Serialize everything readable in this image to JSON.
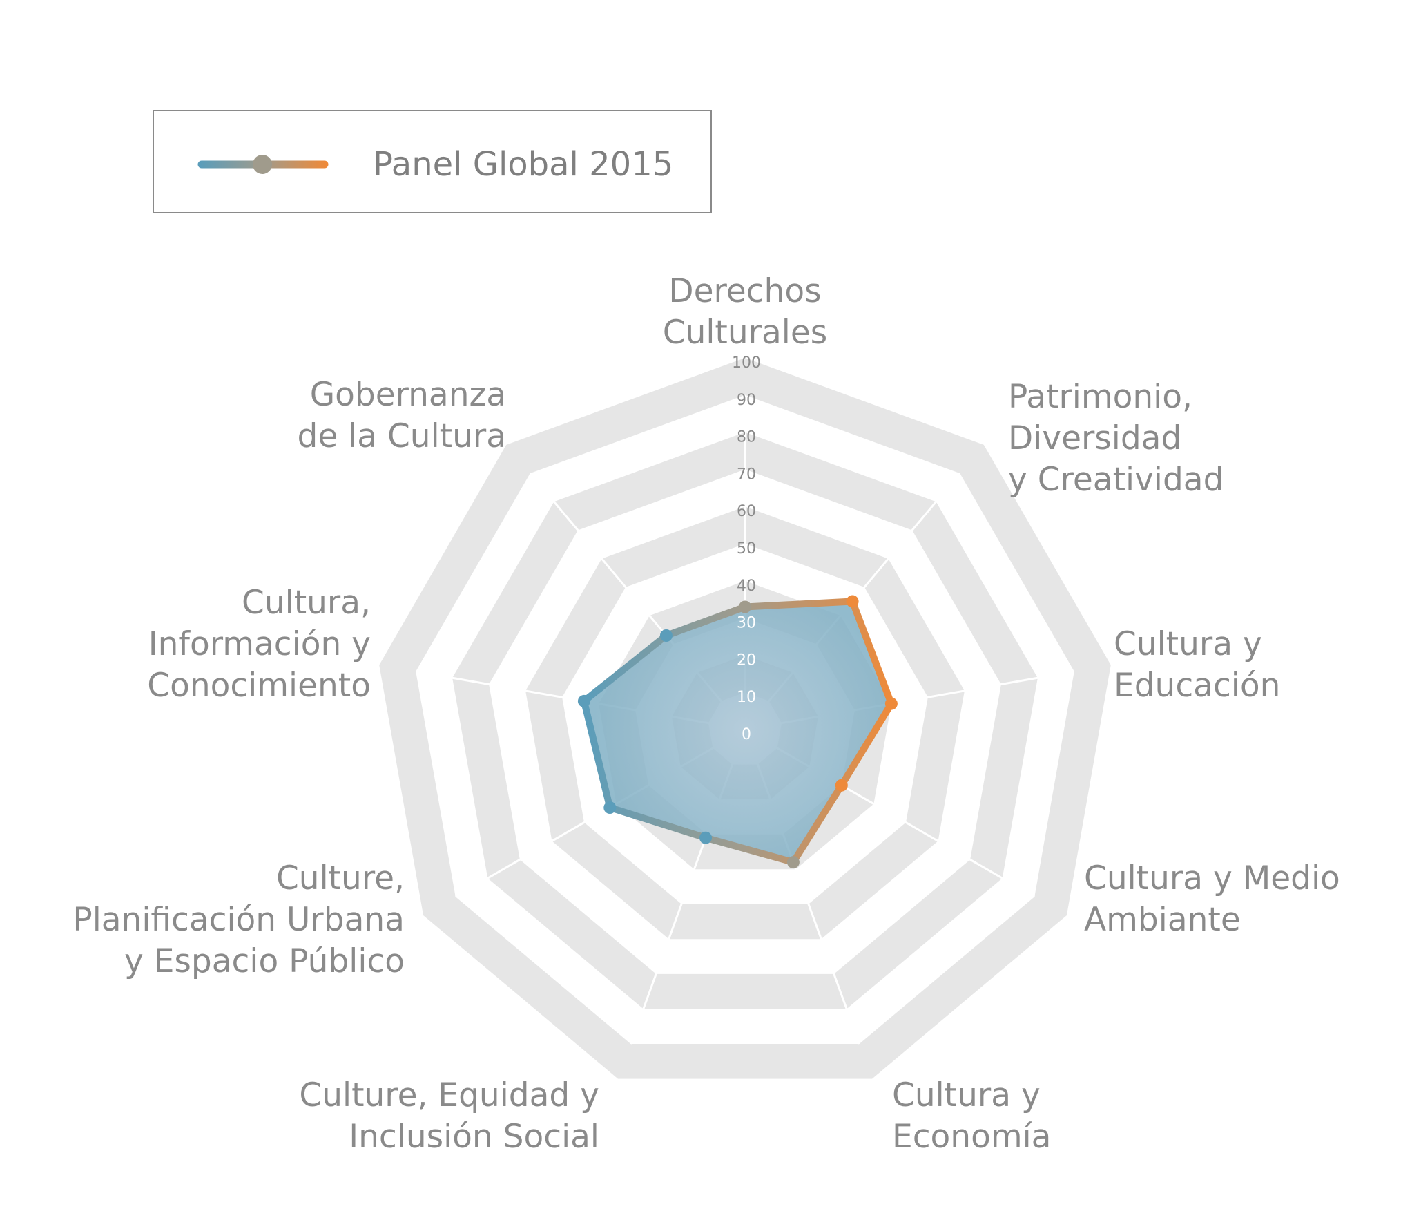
{
  "chart_data": {
    "type": "radar",
    "title": "",
    "rlim": [
      0,
      100
    ],
    "ticks": [
      0,
      10,
      20,
      30,
      40,
      50,
      60,
      70,
      80,
      90,
      100
    ],
    "categories": [
      [
        "Derechos",
        "Culturales"
      ],
      [
        "Patrimonio,",
        "Diversidad",
        "y Creatividad"
      ],
      [
        "Cultura y",
        "Educación"
      ],
      [
        "Cultura y Medio",
        "Ambiante"
      ],
      [
        "Cultura y",
        "Economía"
      ],
      [
        "Culture, Equidad y",
        "Inclusión Social"
      ],
      [
        "Culture,",
        "Planificación Urbana",
        "y Espacio Público"
      ],
      [
        "Cultura,",
        "Información y",
        "Conocimiento"
      ],
      [
        "Gobernanza",
        "de la Cultura"
      ]
    ],
    "series": [
      {
        "name": "Panel Global 2015",
        "values": [
          33,
          45,
          40,
          30,
          38,
          31,
          42,
          44,
          33
        ]
      }
    ],
    "legend": {
      "position": "top-left"
    },
    "colors": {
      "line_start": "#5b9dba",
      "line_mid": "#a09b8c",
      "line_end": "#ee8a3a",
      "fill": "#88b6c9",
      "band": "#e6e6e6",
      "spoke": "#ffffff",
      "label": "#8a8a8a"
    }
  }
}
